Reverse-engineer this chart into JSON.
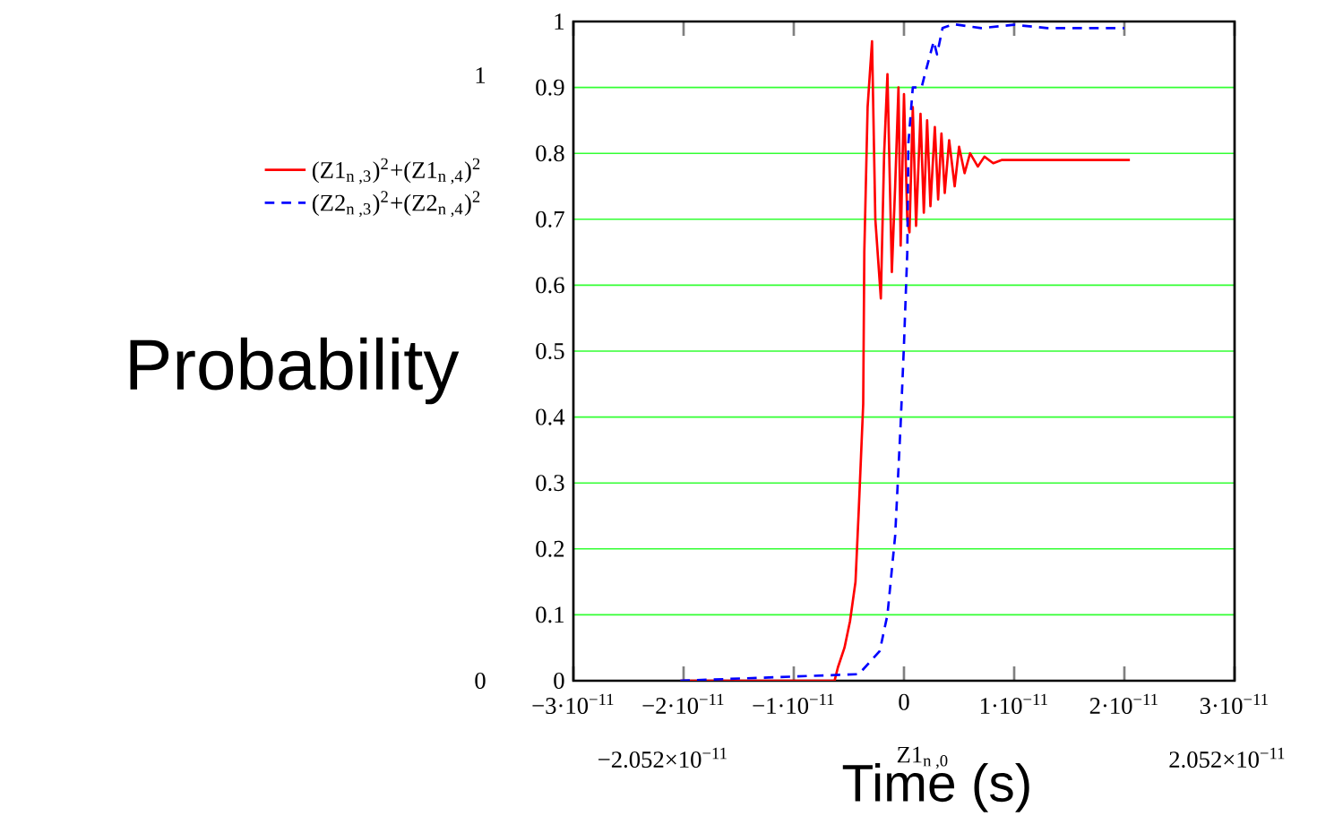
{
  "chart_data": {
    "type": "line",
    "xlabel": "Time (s)",
    "ylabel": "Probability",
    "xlim": [
      -3e-11,
      3e-11
    ],
    "xticks": [
      {
        "value": -3e-11,
        "label": "−3·10$^{−11}$"
      },
      {
        "value": -2e-11,
        "label": "−2·10$^{−11}$"
      },
      {
        "value": -1e-11,
        "label": "−1·10$^{−11}$"
      },
      0,
      {
        "value": 1e-11,
        "label": "1·10$^{−11}$"
      },
      {
        "value": 2e-11,
        "label": "2·10$^{−11}$"
      },
      {
        "value": 3e-11,
        "label": "3·10$^{−11}$"
      }
    ],
    "ylim": [
      0,
      1
    ],
    "yticks": [
      0,
      0.1,
      0.2,
      0.3,
      0.4,
      0.5,
      0.6,
      0.7,
      0.8,
      0.9,
      1
    ],
    "grid": "y",
    "legend": "left",
    "marker": "none",
    "annotations": [
      "1",
      "0",
      "−2.052×10$^{−11}$",
      "Z1$_{n ,0}$",
      "2.052×10$^{−11}$"
    ],
    "series": [
      {
        "name": "(Z1$_{n ,3}$)$^{2}$+(Z1$_{n ,4}$)$^{2}$",
        "color": "#ff0000",
        "line_style": "solid",
        "x": [
          -2.03e-11,
          -6.3e-12,
          -6e-12,
          -5.4e-12,
          -4.9e-12,
          -4.4e-12,
          -4.1e-12,
          -3.7e-12,
          -3.6e-12,
          -3.3e-12,
          -2.9e-12,
          -2.6e-12,
          -2.1e-12,
          -1.8e-12,
          -1.5e-12,
          -1.1e-12,
          -8e-13,
          -5e-13,
          -3e-13,
          0,
          3e-13,
          5e-13,
          8e-13,
          1.1e-12,
          1.5e-12,
          1.8e-12,
          2.1e-12,
          2.4e-12,
          2.8e-12,
          3.1e-12,
          3.4e-12,
          3.7e-12,
          4.1e-12,
          4.6e-12,
          5e-12,
          5.5e-12,
          6e-12,
          6.7e-12,
          7.3e-12,
          8.1e-12,
          8.9e-12,
          2.05e-11
        ],
        "values": [
          0,
          0,
          0.02,
          0.05,
          0.09,
          0.15,
          0.26,
          0.42,
          0.65,
          0.87,
          0.97,
          0.7,
          0.58,
          0.8,
          0.92,
          0.62,
          0.75,
          0.9,
          0.66,
          0.89,
          0.7,
          0.68,
          0.87,
          0.69,
          0.86,
          0.71,
          0.85,
          0.72,
          0.84,
          0.73,
          0.83,
          0.74,
          0.82,
          0.75,
          0.81,
          0.77,
          0.8,
          0.78,
          0.795,
          0.785,
          0.79,
          0.79
        ]
      },
      {
        "name": "(Z2$_{n ,3}$)$^{2}$+(Z2$_{n ,4}$)$^{2}$",
        "color": "#0000ff",
        "line_style": "dashed",
        "x": [
          -2.03e-11,
          -4.1e-12,
          -2.2e-12,
          -1.5e-12,
          -8e-13,
          -3e-13,
          0,
          3e-13,
          4e-13,
          8e-13,
          1.6e-12,
          1.9e-12,
          2.7e-12,
          3e-12,
          3.5e-12,
          4.5e-12,
          7e-12,
          1e-11,
          1.3e-11,
          1.6e-11,
          2e-11
        ],
        "values": [
          0,
          0.01,
          0.045,
          0.1,
          0.22,
          0.39,
          0.51,
          0.65,
          0.815,
          0.9,
          0.9,
          0.92,
          0.97,
          0.95,
          0.99,
          0.996,
          0.99,
          0.995,
          0.99,
          0.99,
          0.99
        ]
      }
    ]
  }
}
